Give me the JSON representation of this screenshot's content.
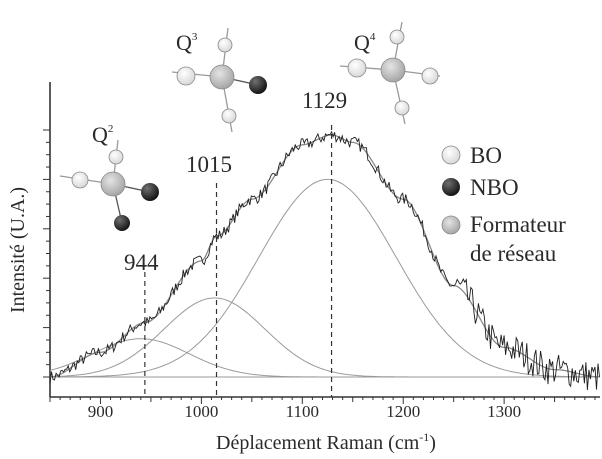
{
  "chart_data": {
    "type": "line",
    "xlabel": "Déplacement Raman (cm",
    "xlabel_sup": "-1",
    "xlabel_close": ")",
    "ylabel": "Intensité (U.A.)",
    "xlim": [
      850,
      1395
    ],
    "ylim": [
      -0.03,
      1.1
    ],
    "x_ticks": [
      900,
      1000,
      1100,
      1200,
      1300
    ],
    "x_tick_labels": [
      "900",
      "1000",
      "1100",
      "1200",
      "1300"
    ],
    "grid": false,
    "peaks": [
      {
        "label": "944",
        "center": 944
      },
      {
        "label": "1015",
        "center": 1015
      },
      {
        "label": "1129",
        "center": 1129
      }
    ],
    "components": [
      {
        "center": 940,
        "amplitude": 0.155,
        "sigma": 48
      },
      {
        "center": 1013,
        "amplitude": 0.32,
        "sigma": 50
      },
      {
        "center": 1125,
        "amplitude": 0.8,
        "sigma": 68
      }
    ],
    "fit_envelope": {
      "x": [
        850,
        900,
        944,
        1000,
        1015,
        1050,
        1100,
        1129,
        1150,
        1200,
        1250,
        1300,
        1350,
        1395
      ],
      "y": [
        0.0,
        0.1,
        0.22,
        0.47,
        0.57,
        0.72,
        0.94,
        0.98,
        0.95,
        0.72,
        0.37,
        0.12,
        0.03,
        0.0
      ]
    },
    "units": [
      {
        "label": "Q",
        "sup": "2"
      },
      {
        "label": "Q",
        "sup": "3"
      },
      {
        "label": "Q",
        "sup": "4"
      }
    ],
    "legend": {
      "position": "right",
      "entries": [
        {
          "label": "BO",
          "color": "#f4f4f4"
        },
        {
          "label": "NBO",
          "color": "#2b2b2b"
        },
        {
          "label": "Formateur",
          "label2": "de réseau",
          "color": "#bdbdbd"
        }
      ]
    },
    "colors": {
      "spectrum": "#1e1e1e",
      "fit": "#8a8a8a",
      "components": "#9a9a9a",
      "axis": "#333333"
    }
  }
}
